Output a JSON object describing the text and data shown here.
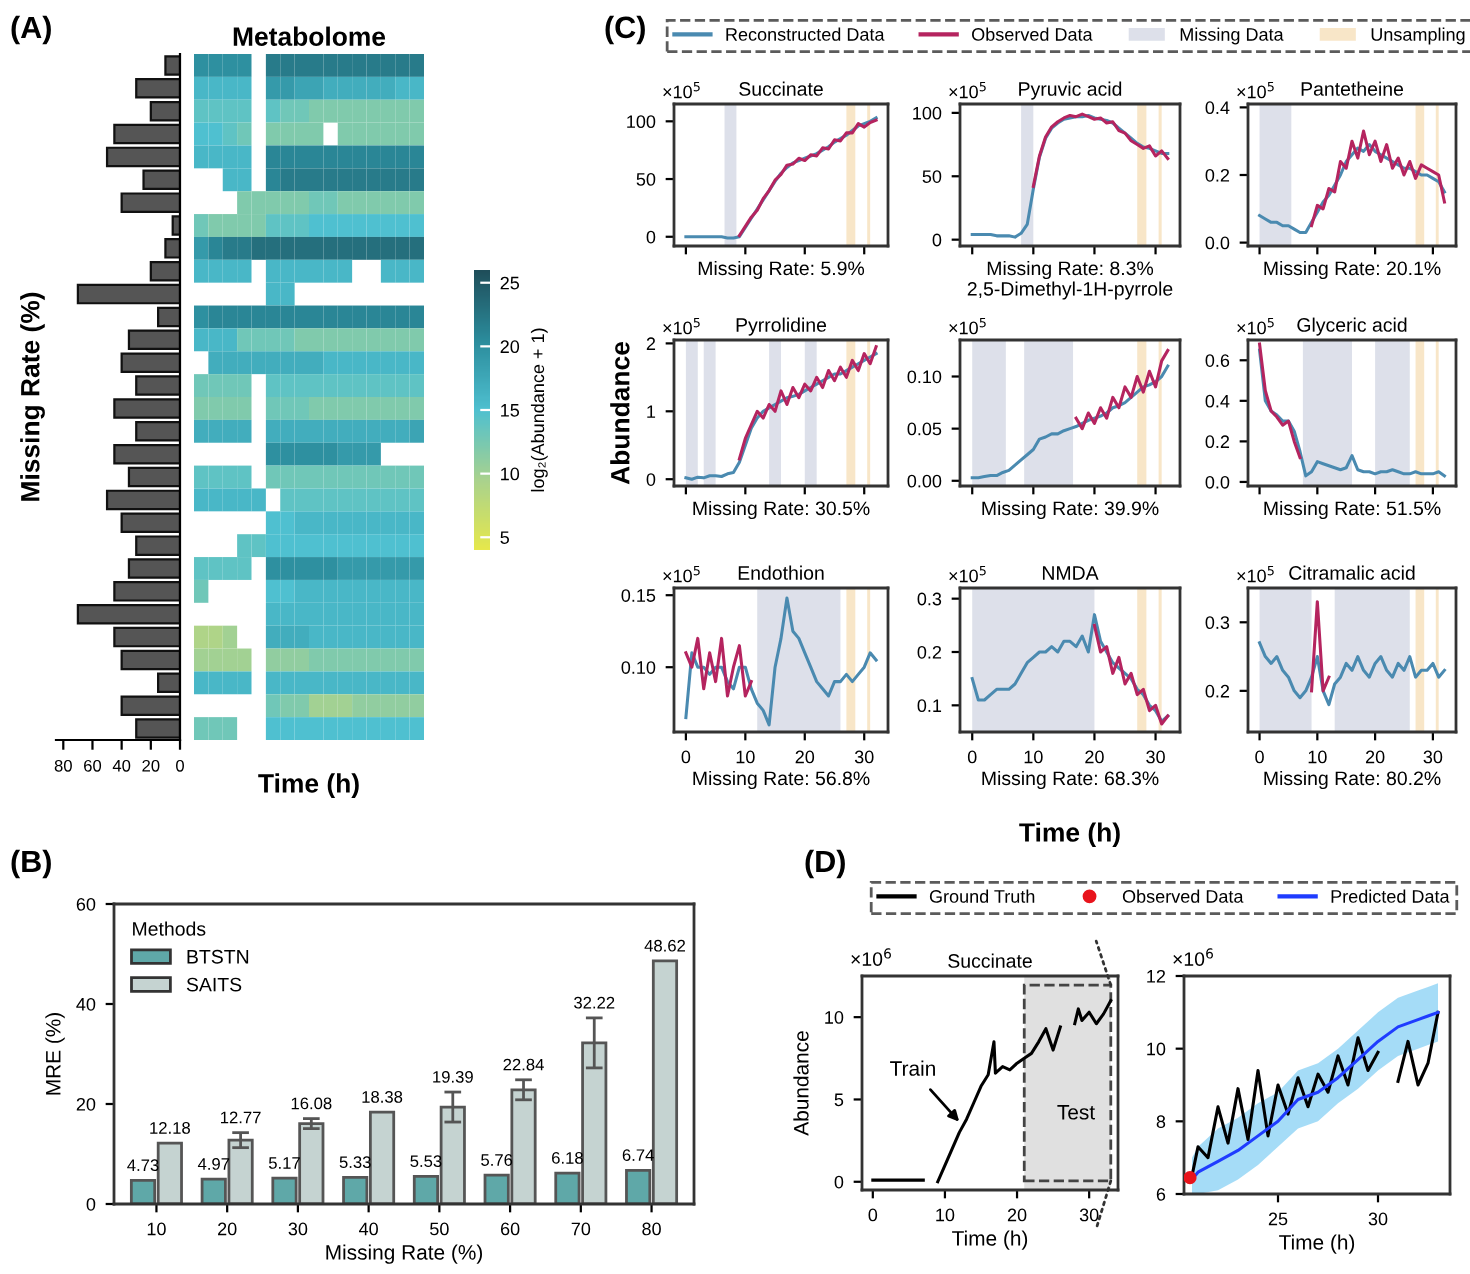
{
  "chart_data": [
    {
      "type": "bar",
      "orientation": "horizontal",
      "ylabel": "Missing Rate (%)",
      "categories": [
        null,
        null,
        null,
        null,
        null,
        null,
        null,
        null,
        null,
        null,
        null,
        null,
        null,
        null,
        null,
        null,
        null,
        null,
        null,
        null,
        null,
        null,
        null,
        null,
        null,
        null,
        null,
        null,
        null,
        null
      ],
      "values": [
        10,
        30,
        20,
        45,
        50,
        25,
        40,
        5,
        10,
        20,
        70,
        15,
        35,
        40,
        30,
        45,
        30,
        45,
        35,
        50,
        40,
        30,
        35,
        45,
        70,
        45,
        40,
        15,
        40,
        30
      ],
      "color": "#555555",
      "xlim": [
        85,
        0
      ],
      "xticks": [
        0,
        20,
        40,
        60,
        80
      ],
      "tick_labels": "x"
    },
    {
      "type": "heatmap",
      "title": "Metabolome",
      "xlabel": "Time (h)",
      "clabel": "log₂(Abundance + 1)",
      "clim": [
        4,
        26
      ],
      "cticks": [
        5,
        10,
        15,
        20,
        25
      ],
      "tick_labels": false,
      "annotations": [
        "(A)"
      ],
      "categories": [
        null,
        null,
        null,
        null,
        null,
        null,
        null,
        null,
        null,
        null,
        null,
        null,
        null,
        null,
        null,
        null
      ],
      "y_categories": [
        null,
        null,
        null,
        null,
        null,
        null,
        null,
        null,
        null,
        null,
        null,
        null,
        null,
        null,
        null,
        null,
        null,
        null,
        null,
        null,
        null,
        null,
        null,
        null,
        null,
        null,
        null,
        null,
        null,
        null
      ],
      "cells": [
        [
          20,
          20,
          20,
          20,
          null,
          22,
          22,
          22,
          22,
          22,
          22,
          22,
          22,
          22,
          22,
          22
        ],
        [
          16,
          16,
          16,
          16,
          null,
          19,
          19,
          18,
          18,
          17,
          17,
          17,
          17,
          17,
          16,
          16
        ],
        [
          14,
          14,
          14,
          14,
          null,
          14,
          13,
          13,
          12,
          12,
          12,
          12,
          12,
          12,
          12,
          12
        ],
        [
          15,
          15,
          14,
          13,
          null,
          12,
          12,
          12,
          12,
          null,
          12,
          12,
          12,
          12,
          12,
          12
        ],
        [
          16,
          16,
          16,
          16,
          null,
          21,
          21,
          21,
          21,
          21,
          21,
          21,
          21,
          21,
          21,
          21
        ],
        [
          null,
          null,
          16,
          16,
          null,
          21,
          22,
          22,
          22,
          22,
          22,
          22,
          22,
          22,
          22,
          22
        ],
        [
          null,
          null,
          null,
          12,
          12,
          12,
          12,
          12,
          13,
          13,
          12,
          12,
          12,
          12,
          12,
          12
        ],
        [
          13,
          12,
          12,
          12,
          12,
          14,
          14,
          14,
          15,
          15,
          15,
          15,
          15,
          15,
          15,
          15
        ],
        [
          19,
          21,
          22,
          22,
          23,
          23,
          23,
          23,
          23,
          23,
          23,
          23,
          23,
          23,
          23,
          23
        ],
        [
          16,
          16,
          16,
          16,
          null,
          16,
          16,
          16,
          16,
          16,
          16,
          null,
          null,
          16,
          16,
          16
        ],
        [
          null,
          null,
          null,
          null,
          null,
          16,
          16,
          null,
          null,
          null,
          null,
          null,
          null,
          null,
          null,
          null
        ],
        [
          20,
          21,
          21,
          21,
          21,
          21,
          21,
          21,
          21,
          21,
          21,
          21,
          21,
          21,
          21,
          21
        ],
        [
          16,
          16,
          16,
          13,
          13,
          13,
          13,
          12,
          12,
          12,
          12,
          12,
          12,
          12,
          12,
          12
        ],
        [
          null,
          17,
          17,
          17,
          17,
          17,
          17,
          17,
          17,
          16,
          16,
          16,
          16,
          16,
          16,
          16
        ],
        [
          13,
          13,
          13,
          13,
          null,
          14,
          14,
          14,
          14,
          14,
          14,
          14,
          14,
          14,
          14,
          14
        ],
        [
          12,
          12,
          12,
          12,
          null,
          13,
          13,
          13,
          12,
          12,
          12,
          12,
          12,
          12,
          12,
          12
        ],
        [
          17,
          17,
          17,
          17,
          null,
          17,
          17,
          17,
          17,
          17,
          17,
          17,
          17,
          17,
          17,
          18
        ],
        [
          null,
          null,
          null,
          null,
          null,
          20,
          20,
          20,
          20,
          20,
          19,
          19,
          19,
          null,
          null,
          null
        ],
        [
          14,
          14,
          14,
          14,
          null,
          13,
          13,
          13,
          13,
          13,
          13,
          13,
          13,
          13,
          13,
          13
        ],
        [
          16,
          16,
          16,
          16,
          16,
          null,
          14,
          14,
          14,
          14,
          14,
          14,
          14,
          14,
          14,
          14
        ],
        [
          null,
          null,
          null,
          null,
          null,
          15,
          15,
          16,
          16,
          16,
          16,
          16,
          16,
          16,
          16,
          16
        ],
        [
          null,
          null,
          null,
          14,
          14,
          15,
          15,
          15,
          15,
          15,
          15,
          15,
          15,
          15,
          15,
          15
        ],
        [
          14,
          14,
          14,
          14,
          null,
          20,
          20,
          20,
          20,
          20,
          19,
          19,
          19,
          19,
          19,
          19
        ],
        [
          13,
          null,
          null,
          null,
          null,
          15,
          15,
          16,
          16,
          16,
          16,
          16,
          16,
          16,
          16,
          16
        ],
        [
          null,
          null,
          null,
          null,
          null,
          16,
          16,
          16,
          16,
          16,
          16,
          16,
          16,
          16,
          16,
          16
        ],
        [
          9,
          9,
          10,
          null,
          null,
          17,
          17,
          17,
          16,
          16,
          16,
          16,
          16,
          16,
          16,
          16
        ],
        [
          10,
          10,
          10,
          10,
          null,
          11,
          11,
          11,
          12,
          12,
          12,
          12,
          12,
          12,
          12,
          12
        ],
        [
          16,
          16,
          16,
          16,
          null,
          16,
          16,
          16,
          16,
          16,
          16,
          16,
          16,
          16,
          16,
          16
        ],
        [
          null,
          null,
          null,
          null,
          null,
          13,
          12,
          12,
          10,
          10,
          10,
          11,
          11,
          11,
          11,
          11
        ],
        [
          13,
          13,
          13,
          null,
          null,
          15,
          15,
          15,
          15,
          15,
          15,
          15,
          15,
          15,
          15,
          15
        ]
      ]
    },
    {
      "type": "bar",
      "xlabel": "Missing Rate (%)",
      "ylabel": "MRE (%)",
      "legend_title": "Methods",
      "legend": "top left",
      "data_labels": true,
      "annotations": [
        "(B)"
      ],
      "categories": [
        "10",
        "20",
        "30",
        "40",
        "50",
        "60",
        "70",
        "80"
      ],
      "ylim": [
        0,
        60
      ],
      "yticks": [
        0,
        20,
        40,
        60
      ],
      "series": [
        {
          "name": "BTSTN",
          "color": "#5fa8a8",
          "values": [
            4.73,
            4.97,
            5.17,
            5.33,
            5.53,
            5.76,
            6.18,
            6.74
          ]
        },
        {
          "name": "SAITS",
          "color": "#c5d3d1",
          "values": [
            12.18,
            12.77,
            16.08,
            18.38,
            19.39,
            22.84,
            32.22,
            48.62
          ],
          "errors": [
            null,
            1.5,
            1,
            null,
            3,
            2,
            5,
            null
          ]
        }
      ]
    },
    {
      "type": "line",
      "title": "Succinate",
      "annotations": [
        "×10$^{5}$",
        "Missing Rate: 5.9%",
        "(C)"
      ],
      "legend": "top",
      "tick_labels": "y",
      "xlim": [
        -2,
        34
      ],
      "xticks": [
        0,
        10,
        20,
        30
      ],
      "ylim": [
        -8,
        115
      ],
      "yticks": [
        0,
        50,
        100
      ],
      "x": [
        0,
        1,
        2,
        3,
        4,
        5,
        6,
        7,
        8,
        9,
        10,
        11,
        12,
        13,
        14,
        15,
        16,
        17,
        18,
        19,
        20,
        21,
        22,
        23,
        24,
        25,
        26,
        27,
        28,
        29,
        30,
        31,
        32
      ],
      "bands": [
        {
          "axis": "x",
          "from": 6.5,
          "to": 8.5,
          "color": "#dde0ea",
          "label": "Missing Data"
        },
        {
          "axis": "x",
          "from": 27,
          "to": 28.5,
          "color": "#f8e6c8",
          "label": "Unsampling"
        },
        {
          "axis": "x",
          "from": 30.5,
          "to": 31,
          "color": "#f8e6c8"
        }
      ],
      "series": [
        {
          "name": "Reconstructed Data",
          "color": "#4a8ab0",
          "values": [
            0,
            0,
            0,
            0,
            0,
            0,
            0,
            -1,
            -1,
            0,
            8,
            16,
            24,
            32,
            40,
            48,
            55,
            60,
            64,
            66,
            68,
            70,
            72,
            75,
            78,
            82,
            85,
            88,
            92,
            96,
            98,
            100,
            103
          ]
        },
        {
          "name": "Observed Data",
          "color": "#b5245f",
          "values": [
            null,
            null,
            null,
            null,
            null,
            null,
            null,
            null,
            null,
            1,
            9,
            17,
            23,
            33,
            40,
            49,
            54,
            62,
            63,
            68,
            66,
            71,
            70,
            77,
            76,
            84,
            83,
            90,
            90,
            98,
            95,
            99,
            101
          ]
        }
      ]
    },
    {
      "type": "line",
      "title": "Pyruvic acid",
      "annotations": [
        "×10$^{5}$",
        "Missing Rate: 8.3%"
      ],
      "tick_labels": "y",
      "xlim": [
        -2,
        34
      ],
      "xticks": [
        0,
        10,
        20,
        30
      ],
      "ylim": [
        -5,
        107
      ],
      "yticks": [
        0,
        50,
        100
      ],
      "x": [
        0,
        1,
        2,
        3,
        4,
        5,
        6,
        7,
        8,
        9,
        10,
        11,
        12,
        13,
        14,
        15,
        16,
        17,
        18,
        19,
        20,
        21,
        22,
        23,
        24,
        25,
        26,
        27,
        28,
        29,
        30,
        31,
        32
      ],
      "bands": [
        {
          "axis": "x",
          "from": 8,
          "to": 10,
          "color": "#dde0ea"
        },
        {
          "axis": "x",
          "from": 27,
          "to": 28.5,
          "color": "#f8e6c8"
        },
        {
          "axis": "x",
          "from": 30.5,
          "to": 31,
          "color": "#f8e6c8"
        }
      ],
      "series": [
        {
          "color": "#4a8ab0",
          "values": [
            4,
            4,
            4,
            4,
            3,
            3,
            3,
            2,
            5,
            12,
            40,
            65,
            80,
            88,
            92,
            95,
            96,
            97,
            97,
            98,
            96,
            95,
            94,
            92,
            88,
            84,
            80,
            76,
            73,
            72,
            70,
            68,
            68
          ]
        },
        {
          "color": "#b5245f",
          "values": [
            null,
            null,
            null,
            null,
            null,
            null,
            null,
            null,
            null,
            null,
            42,
            66,
            81,
            89,
            93,
            96,
            98,
            97,
            99,
            97,
            95,
            96,
            92,
            93,
            86,
            84,
            78,
            75,
            72,
            74,
            66,
            70,
            64
          ]
        }
      ]
    },
    {
      "type": "line",
      "title": "Pantetheine",
      "annotations": [
        "×10$^{5}$",
        "Missing Rate: 20.1%"
      ],
      "tick_labels": "y",
      "xlim": [
        -2,
        34
      ],
      "xticks": [
        0,
        10,
        20,
        30
      ],
      "ylim": [
        -0.01,
        0.41
      ],
      "yticks": [
        {
          "value": 0,
          "label": "0.0"
        },
        0.2,
        0.4
      ],
      "x": [
        0,
        1,
        2,
        3,
        4,
        5,
        6,
        7,
        8,
        9,
        10,
        11,
        12,
        13,
        14,
        15,
        16,
        17,
        18,
        19,
        20,
        21,
        22,
        23,
        24,
        25,
        26,
        27,
        28,
        29,
        30,
        31,
        32
      ],
      "bands": [
        {
          "axis": "x",
          "from": 0,
          "to": 5.5,
          "color": "#dde0ea"
        },
        {
          "axis": "x",
          "from": 27,
          "to": 28.5,
          "color": "#f8e6c8"
        },
        {
          "axis": "x",
          "from": 30.5,
          "to": 31,
          "color": "#f8e6c8"
        }
      ],
      "series": [
        {
          "color": "#4a8ab0",
          "values": [
            0.08,
            0.07,
            0.06,
            0.06,
            0.05,
            0.05,
            0.04,
            0.03,
            0.03,
            0.06,
            0.09,
            0.12,
            0.14,
            0.17,
            0.2,
            0.24,
            0.26,
            0.28,
            0.27,
            0.29,
            0.27,
            0.26,
            0.25,
            0.24,
            0.23,
            0.22,
            0.22,
            0.21,
            0.2,
            0.2,
            0.19,
            0.18,
            0.15
          ]
        },
        {
          "color": "#b5245f",
          "values": [
            null,
            null,
            null,
            null,
            null,
            null,
            null,
            null,
            null,
            0.05,
            0.11,
            0.1,
            0.16,
            0.15,
            0.24,
            0.22,
            0.3,
            0.25,
            0.33,
            0.26,
            0.3,
            0.24,
            0.29,
            0.22,
            0.25,
            0.2,
            0.24,
            0.19,
            0.23,
            0.22,
            0.21,
            0.2,
            0.12
          ]
        }
      ]
    },
    {
      "type": "line",
      "title": "Pyrrolidine",
      "ylabel": "Abundance",
      "annotations": [
        "×10$^{5}$",
        "Missing Rate: 30.5%"
      ],
      "tick_labels": "y",
      "xlim": [
        -2,
        34
      ],
      "xticks": [
        0,
        10,
        20,
        30
      ],
      "ylim": [
        -0.1,
        2.05
      ],
      "yticks": [
        0,
        1,
        2
      ],
      "x": [
        0,
        1,
        2,
        3,
        4,
        5,
        6,
        7,
        8,
        9,
        10,
        11,
        12,
        13,
        14,
        15,
        16,
        17,
        18,
        19,
        20,
        21,
        22,
        23,
        24,
        25,
        26,
        27,
        28,
        29,
        30,
        31,
        32
      ],
      "bands": [
        {
          "axis": "x",
          "from": 0,
          "to": 2,
          "color": "#dde0ea"
        },
        {
          "axis": "x",
          "from": 3,
          "to": 5,
          "color": "#dde0ea"
        },
        {
          "axis": "x",
          "from": 14,
          "to": 16,
          "color": "#dde0ea"
        },
        {
          "axis": "x",
          "from": 20,
          "to": 22,
          "color": "#dde0ea"
        },
        {
          "axis": "x",
          "from": 27,
          "to": 28.5,
          "color": "#f8e6c8"
        },
        {
          "axis": "x",
          "from": 30.5,
          "to": 31,
          "color": "#f8e6c8"
        }
      ],
      "series": [
        {
          "color": "#4a8ab0",
          "values": [
            0.02,
            0,
            0.03,
            0.02,
            0.05,
            0.05,
            0.04,
            0.08,
            0.1,
            0.25,
            0.5,
            0.75,
            0.9,
            1.0,
            1.05,
            1.1,
            1.15,
            1.2,
            1.22,
            1.25,
            1.3,
            1.35,
            1.4,
            1.45,
            1.5,
            1.55,
            1.55,
            1.6,
            1.65,
            1.7,
            1.75,
            1.8,
            1.85
          ]
        },
        {
          "color": "#b5245f",
          "values": [
            null,
            null,
            null,
            null,
            null,
            null,
            null,
            null,
            null,
            0.3,
            0.6,
            0.8,
            1.0,
            0.9,
            1.1,
            1.0,
            1.3,
            1.1,
            1.35,
            1.2,
            1.4,
            1.3,
            1.5,
            1.35,
            1.6,
            1.45,
            1.65,
            1.5,
            1.75,
            1.6,
            1.85,
            1.7,
            1.95
          ]
        }
      ]
    },
    {
      "type": "line",
      "title": "2,5-Dimethyl-1H-pyrrole",
      "annotations": [
        "×10$^{5}$",
        "Missing Rate: 39.9%"
      ],
      "tick_labels": "y",
      "xlim": [
        -2,
        34
      ],
      "xticks": [
        0,
        10,
        20,
        30
      ],
      "ylim": [
        -0.005,
        0.135
      ],
      "yticks": [
        {
          "value": 0,
          "label": "0.00"
        },
        {
          "value": 0.05,
          "label": "0.05"
        },
        {
          "value": 0.1,
          "label": "0.10"
        }
      ],
      "x": [
        0,
        1,
        2,
        3,
        4,
        5,
        6,
        7,
        8,
        9,
        10,
        11,
        12,
        13,
        14,
        15,
        16,
        17,
        18,
        19,
        20,
        21,
        22,
        23,
        24,
        25,
        26,
        27,
        28,
        29,
        30,
        31,
        32
      ],
      "bands": [
        {
          "axis": "x",
          "from": 0,
          "to": 5.5,
          "color": "#dde0ea"
        },
        {
          "axis": "x",
          "from": 8.5,
          "to": 16.5,
          "color": "#dde0ea"
        },
        {
          "axis": "x",
          "from": 27,
          "to": 28.5,
          "color": "#f8e6c8"
        },
        {
          "axis": "x",
          "from": 30.5,
          "to": 31,
          "color": "#f8e6c8"
        }
      ],
      "series": [
        {
          "color": "#4a8ab0",
          "values": [
            0.003,
            0.003,
            0.004,
            0.005,
            0.005,
            0.008,
            0.01,
            0.015,
            0.02,
            0.025,
            0.03,
            0.04,
            0.042,
            0.045,
            0.045,
            0.048,
            0.05,
            0.052,
            0.055,
            0.058,
            0.06,
            0.062,
            0.065,
            0.07,
            0.072,
            0.075,
            0.08,
            0.085,
            0.09,
            0.092,
            0.095,
            0.1,
            0.11
          ]
        },
        {
          "color": "#b5245f",
          "values": [
            null,
            null,
            null,
            null,
            null,
            null,
            null,
            null,
            null,
            null,
            null,
            null,
            null,
            null,
            null,
            null,
            null,
            0.06,
            0.05,
            0.065,
            0.055,
            0.07,
            0.06,
            0.08,
            0.07,
            0.09,
            0.08,
            0.1,
            0.085,
            0.105,
            0.09,
            0.115,
            0.125
          ]
        }
      ]
    },
    {
      "type": "line",
      "title": "Glyceric acid",
      "annotations": [
        "×10$^{5}$",
        "Missing Rate: 51.5%"
      ],
      "tick_labels": "y",
      "xlim": [
        -2,
        34
      ],
      "xticks": [
        0,
        10,
        20,
        30
      ],
      "ylim": [
        -0.02,
        0.7
      ],
      "yticks": [
        {
          "value": 0,
          "label": "0.0"
        },
        0.2,
        0.4,
        0.6
      ],
      "x": [
        0,
        1,
        2,
        3,
        4,
        5,
        6,
        7,
        8,
        9,
        10,
        11,
        12,
        13,
        14,
        15,
        16,
        17,
        18,
        19,
        20,
        21,
        22,
        23,
        24,
        25,
        26,
        27,
        28,
        29,
        30,
        31,
        32
      ],
      "bands": [
        {
          "axis": "x",
          "from": 7.5,
          "to": 16,
          "color": "#dde0ea"
        },
        {
          "axis": "x",
          "from": 20,
          "to": 26,
          "color": "#dde0ea"
        },
        {
          "axis": "x",
          "from": 27,
          "to": 28.5,
          "color": "#f8e6c8"
        },
        {
          "axis": "x",
          "from": 30.5,
          "to": 31,
          "color": "#f8e6c8"
        }
      ],
      "series": [
        {
          "color": "#4a8ab0",
          "values": [
            0.65,
            0.4,
            0.35,
            0.33,
            0.3,
            0.3,
            0.25,
            0.15,
            0.03,
            0.05,
            0.1,
            0.09,
            0.08,
            0.07,
            0.06,
            0.07,
            0.13,
            0.06,
            0.05,
            0.05,
            0.04,
            0.05,
            0.05,
            0.06,
            0.05,
            0.04,
            0.04,
            0.05,
            0.04,
            0.04,
            0.04,
            0.05,
            0.03
          ]
        },
        {
          "color": "#b5245f",
          "values": [
            0.68,
            0.45,
            0.35,
            0.32,
            0.28,
            0.3,
            0.2,
            0.12,
            null,
            null,
            null,
            null,
            null,
            null,
            null,
            null,
            null,
            null,
            null,
            null,
            null,
            null,
            null,
            null,
            null,
            null,
            null,
            null,
            null,
            null,
            null,
            null,
            null
          ]
        }
      ]
    },
    {
      "type": "line",
      "title": "Endothion",
      "annotations": [
        "×10$^{5}$",
        "Missing Rate: 56.8%"
      ],
      "xlim": [
        -2,
        34
      ],
      "xticks": [
        0,
        10,
        20,
        30
      ],
      "ylim": [
        0.055,
        0.155
      ],
      "yticks": [
        {
          "value": 0.1,
          "label": "0.10"
        },
        {
          "value": 0.15,
          "label": "0.15"
        }
      ],
      "x": [
        0,
        1,
        2,
        3,
        4,
        5,
        6,
        7,
        8,
        9,
        10,
        11,
        12,
        13,
        14,
        15,
        16,
        17,
        18,
        19,
        20,
        21,
        22,
        23,
        24,
        25,
        26,
        27,
        28,
        29,
        30,
        31,
        32
      ],
      "bands": [
        {
          "axis": "x",
          "from": 12,
          "to": 26,
          "color": "#dde0ea"
        },
        {
          "axis": "x",
          "from": 27,
          "to": 28.5,
          "color": "#f8e6c8"
        },
        {
          "axis": "x",
          "from": 30.5,
          "to": 31,
          "color": "#f8e6c8"
        }
      ],
      "series": [
        {
          "color": "#4a8ab0",
          "values": [
            0.065,
            0.11,
            0.1,
            0.1,
            0.095,
            0.1,
            0.1,
            0.09,
            0.085,
            0.1,
            0.1,
            0.085,
            0.075,
            0.07,
            0.06,
            0.1,
            0.12,
            0.148,
            0.125,
            0.12,
            0.11,
            0.1,
            0.09,
            0.085,
            0.08,
            0.09,
            0.09,
            0.095,
            0.09,
            0.095,
            0.1,
            0.11,
            0.105
          ]
        },
        {
          "color": "#b5245f",
          "values": [
            0.11,
            0.1,
            0.12,
            0.085,
            0.11,
            0.09,
            0.12,
            0.08,
            0.1,
            0.115,
            0.08,
            0.09,
            null,
            null,
            null,
            null,
            null,
            null,
            null,
            null,
            null,
            null,
            null,
            null,
            null,
            null,
            null,
            null,
            null,
            null,
            null,
            null,
            null
          ]
        }
      ]
    },
    {
      "type": "line",
      "title": "NMDA",
      "xlabel": "Time (h)",
      "annotations": [
        "×10$^{5}$",
        "Missing Rate: 68.3%"
      ],
      "xlim": [
        -2,
        34
      ],
      "xticks": [
        0,
        10,
        20,
        30
      ],
      "ylim": [
        0.05,
        0.32
      ],
      "yticks": [
        0.1,
        0.2,
        0.3
      ],
      "x": [
        0,
        1,
        2,
        3,
        4,
        5,
        6,
        7,
        8,
        9,
        10,
        11,
        12,
        13,
        14,
        15,
        16,
        17,
        18,
        19,
        20,
        21,
        22,
        23,
        24,
        25,
        26,
        27,
        28,
        29,
        30,
        31,
        32
      ],
      "bands": [
        {
          "axis": "x",
          "from": 0,
          "to": 20,
          "color": "#dde0ea"
        },
        {
          "axis": "x",
          "from": 27,
          "to": 28.5,
          "color": "#f8e6c8"
        },
        {
          "axis": "x",
          "from": 30.5,
          "to": 31,
          "color": "#f8e6c8"
        }
      ],
      "series": [
        {
          "color": "#4a8ab0",
          "values": [
            0.15,
            0.11,
            0.11,
            0.12,
            0.13,
            0.13,
            0.13,
            0.14,
            0.16,
            0.18,
            0.19,
            0.2,
            0.2,
            0.21,
            0.2,
            0.22,
            0.22,
            0.21,
            0.23,
            0.2,
            0.27,
            0.22,
            0.2,
            0.18,
            0.17,
            0.16,
            0.15,
            0.13,
            0.12,
            0.1,
            0.09,
            0.07,
            0.08
          ]
        },
        {
          "color": "#b5245f",
          "values": [
            null,
            null,
            null,
            null,
            null,
            null,
            null,
            null,
            null,
            null,
            null,
            null,
            null,
            null,
            null,
            null,
            null,
            null,
            null,
            null,
            0.25,
            0.2,
            0.21,
            0.16,
            0.19,
            0.14,
            0.16,
            0.12,
            0.13,
            0.09,
            0.1,
            0.065,
            0.08
          ]
        }
      ]
    },
    {
      "type": "line",
      "title": "Citramalic acid",
      "annotations": [
        "×10$^{5}$",
        "Missing Rate: 80.2%"
      ],
      "xlim": [
        -2,
        34
      ],
      "xticks": [
        0,
        10,
        20,
        30
      ],
      "ylim": [
        0.14,
        0.35
      ],
      "yticks": [
        0.2,
        0.3
      ],
      "x": [
        0,
        1,
        2,
        3,
        4,
        5,
        6,
        7,
        8,
        9,
        10,
        11,
        12,
        13,
        14,
        15,
        16,
        17,
        18,
        19,
        20,
        21,
        22,
        23,
        24,
        25,
        26,
        27,
        28,
        29,
        30,
        31,
        32
      ],
      "bands": [
        {
          "axis": "x",
          "from": 0,
          "to": 9,
          "color": "#dde0ea"
        },
        {
          "axis": "x",
          "from": 13,
          "to": 26,
          "color": "#dde0ea"
        },
        {
          "axis": "x",
          "from": 27,
          "to": 28.5,
          "color": "#f8e6c8"
        },
        {
          "axis": "x",
          "from": 30.5,
          "to": 31,
          "color": "#f8e6c8"
        }
      ],
      "series": [
        {
          "color": "#4a8ab0",
          "values": [
            0.27,
            0.25,
            0.24,
            0.25,
            0.23,
            0.22,
            0.2,
            0.19,
            0.2,
            0.22,
            0.25,
            0.2,
            0.18,
            0.21,
            0.22,
            0.24,
            0.23,
            0.25,
            0.23,
            0.22,
            0.24,
            0.25,
            0.23,
            0.22,
            0.24,
            0.23,
            0.25,
            0.22,
            0.23,
            0.23,
            0.24,
            0.22,
            0.23
          ]
        },
        {
          "color": "#b5245f",
          "values": [
            null,
            null,
            null,
            null,
            null,
            null,
            null,
            null,
            null,
            0.2,
            0.33,
            0.2,
            0.22,
            null,
            null,
            null,
            null,
            null,
            null,
            null,
            null,
            null,
            null,
            null,
            null,
            null,
            null,
            null,
            null,
            null,
            null,
            null,
            null
          ]
        }
      ]
    },
    {
      "type": "line",
      "title": "Succinate",
      "xlabel": "Time (h)",
      "ylabel": "Abundance",
      "annotations": [
        "×10$^{6}$",
        "(D)",
        {
          "text": "Train",
          "x": 12.5,
          "y": 3.4
        },
        "Test"
      ],
      "xlim": [
        -1.5,
        34
      ],
      "xticks": [
        0,
        10,
        20,
        30
      ],
      "ylim": [
        -0.5,
        12.5
      ],
      "yticks": [
        0,
        5,
        10
      ],
      "bands": [
        {
          "axis": "x",
          "from": 21,
          "to": 33,
          "color": "#e0e0e0"
        }
      ],
      "series": [
        {
          "color": "#000000",
          "x": [
            0,
            3.5,
            7,
            8,
            9,
            10,
            11,
            12,
            13,
            14,
            15,
            16,
            16.8,
            17,
            18,
            19,
            20,
            21,
            22,
            23,
            24,
            25,
            26,
            27,
            28,
            28.5,
            29,
            30,
            31,
            32,
            33
          ],
          "values": [
            0.1,
            0.1,
            0.1,
            null,
            0,
            1,
            2,
            3,
            3.8,
            4.8,
            5.8,
            6.5,
            8.5,
            6.6,
            7,
            6.8,
            7.2,
            7.5,
            7.8,
            8.5,
            9.3,
            8,
            9.4,
            null,
            9.6,
            10.5,
            9.8,
            10.3,
            9.6,
            10.2,
            11
          ]
        }
      ]
    },
    {
      "type": "line",
      "xlabel": "Time (h)",
      "annotations": [
        "×10$^{6}$"
      ],
      "legend": "top",
      "xlim": [
        20.3,
        33.6
      ],
      "xticks": [
        25,
        30
      ],
      "ylim": [
        6,
        12
      ],
      "yticks": [
        6,
        8,
        10,
        12
      ],
      "series": [
        {
          "name": "Ground Truth",
          "color": "#000000",
          "x": [
            20.7,
            21,
            21.5,
            22,
            22.5,
            23,
            23.5,
            24,
            24.5,
            25,
            25.5,
            26,
            26.5,
            27,
            27.5,
            28,
            28.5,
            29,
            29.5,
            30,
            30.5,
            31,
            31.5,
            32,
            32.5,
            33
          ],
          "values": [
            6.5,
            7.3,
            7.0,
            8.4,
            7.4,
            8.9,
            7.5,
            9.4,
            7.6,
            9.0,
            8.2,
            9.2,
            8.4,
            9.3,
            8.8,
            9.8,
            9.0,
            10.3,
            9.4,
            9.9,
            null,
            9.1,
            10.2,
            9.0,
            9.6,
            11
          ]
        },
        {
          "name": "Observed Data",
          "type": "scatter",
          "color": "#e8141c",
          "x": [
            20.6
          ],
          "values": [
            6.45
          ]
        },
        {
          "name": "Predicted Data",
          "color": "#1f3cff",
          "x": [
            20.7,
            21,
            22,
            23,
            24,
            25,
            26,
            27,
            28,
            29,
            30,
            31,
            32,
            32.5,
            33
          ],
          "values": [
            6.4,
            6.6,
            6.9,
            7.2,
            7.6,
            8.0,
            8.6,
            8.8,
            9.2,
            9.7,
            10.2,
            10.6,
            10.8,
            10.9,
            11.0
          ],
          "lower": [
            6.0,
            6.0,
            6.1,
            6.4,
            6.8,
            7.3,
            7.8,
            8.0,
            8.5,
            8.9,
            9.4,
            9.8,
            10.0,
            10.1,
            10.2
          ],
          "upper": [
            7.0,
            7.3,
            7.8,
            8.1,
            8.5,
            8.8,
            9.4,
            9.6,
            10.0,
            10.5,
            11.0,
            11.4,
            11.6,
            11.7,
            11.8
          ]
        }
      ]
    }
  ]
}
